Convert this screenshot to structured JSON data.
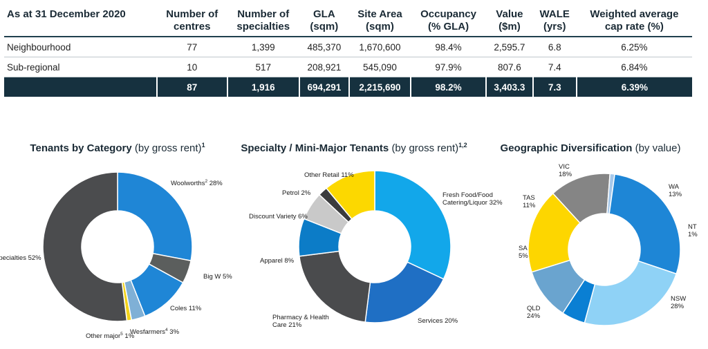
{
  "table": {
    "headers": [
      {
        "line1": "As at 31 December 2020",
        "line2": ""
      },
      {
        "line1": "Number of",
        "line2": "centres"
      },
      {
        "line1": "Number of",
        "line2": "specialties"
      },
      {
        "line1": "GLA",
        "line2": "(sqm)"
      },
      {
        "line1": "Site Area",
        "line2": "(sqm)"
      },
      {
        "line1": "Occupancy",
        "line2": "(% GLA)"
      },
      {
        "line1": "Value",
        "line2": "($m)"
      },
      {
        "line1": "WALE",
        "line2": "(yrs)"
      },
      {
        "line1": "Weighted average",
        "line2": "cap rate (%)"
      }
    ],
    "rows": [
      [
        "Neighbourhood",
        "77",
        "1,399",
        "485,370",
        "1,670,600",
        "98.4%",
        "2,595.7",
        "6.8",
        "6.25%"
      ],
      [
        "Sub-regional",
        "10",
        "517",
        "208,921",
        "545,090",
        "97.9%",
        "807.6",
        "7.4",
        "6.84%"
      ]
    ],
    "total": [
      "",
      "87",
      "1,916",
      "694,291",
      "2,215,690",
      "98.2%",
      "3,403.3",
      "7.3",
      "6.39%"
    ]
  },
  "chart_data": [
    {
      "type": "pie",
      "title": "Tenants by Category",
      "subtitle": "(by gross rent)",
      "title_footnote": "1",
      "slices": [
        {
          "label": "Woolworths",
          "footnote": "2",
          "value": 28,
          "color": "#1f86d6"
        },
        {
          "label": "Big W",
          "footnote": "",
          "value": 5,
          "color": "#5b5e5d"
        },
        {
          "label": "Coles",
          "footnote": "",
          "value": 11,
          "color": "#1f86d6"
        },
        {
          "label": "Wesfarmers",
          "footnote": "4",
          "value": 3,
          "color": "#7fb0d6"
        },
        {
          "label": "Other major",
          "footnote": "5",
          "value": 1,
          "color": "#f2d31b"
        },
        {
          "label": "Specialties",
          "footnote": "",
          "value": 52,
          "color": "#4b4c4e"
        }
      ]
    },
    {
      "type": "pie",
      "title": "Specialty / Mini-Major Tenants",
      "subtitle": "(by gross rent)",
      "title_footnote": "1,2",
      "slices": [
        {
          "label": "Fresh Food/Food Catering/Liquor",
          "footnote": "",
          "value": 32,
          "color": "#12a7ea"
        },
        {
          "label": "Services",
          "footnote": "",
          "value": 20,
          "color": "#1f6fc4"
        },
        {
          "label": "Pharmacy & Health Care",
          "footnote": "",
          "value": 21,
          "color": "#4a4b4d"
        },
        {
          "label": "Apparel",
          "footnote": "",
          "value": 8,
          "color": "#0c7cc7"
        },
        {
          "label": "Discount Variety",
          "footnote": "",
          "value": 6,
          "color": "#c9c9c9"
        },
        {
          "label": "Petrol",
          "footnote": "",
          "value": 2,
          "color": "#3b3c3e"
        },
        {
          "label": "Other Retail",
          "footnote": "",
          "value": 11,
          "color": "#fcd800"
        }
      ]
    },
    {
      "type": "pie",
      "title": "Geographic Diversification",
      "subtitle": "(by value)",
      "title_footnote": "",
      "slices": [
        {
          "label": "WA",
          "footnote": "",
          "value": 13,
          "color": "#858585"
        },
        {
          "label": "NT",
          "footnote": "",
          "value": 1,
          "color": "#a6c8ea"
        },
        {
          "label": "NSW",
          "footnote": "",
          "value": 28,
          "color": "#1e86d6"
        },
        {
          "label": "QLD",
          "footnote": "",
          "value": 24,
          "color": "#8fd2f6"
        },
        {
          "label": "SA",
          "footnote": "",
          "value": 5,
          "color": "#0a7fd3"
        },
        {
          "label": "TAS",
          "footnote": "",
          "value": 11,
          "color": "#6aa4cf"
        },
        {
          "label": "VIC",
          "footnote": "",
          "value": 18,
          "color": "#fdd600"
        }
      ]
    }
  ]
}
